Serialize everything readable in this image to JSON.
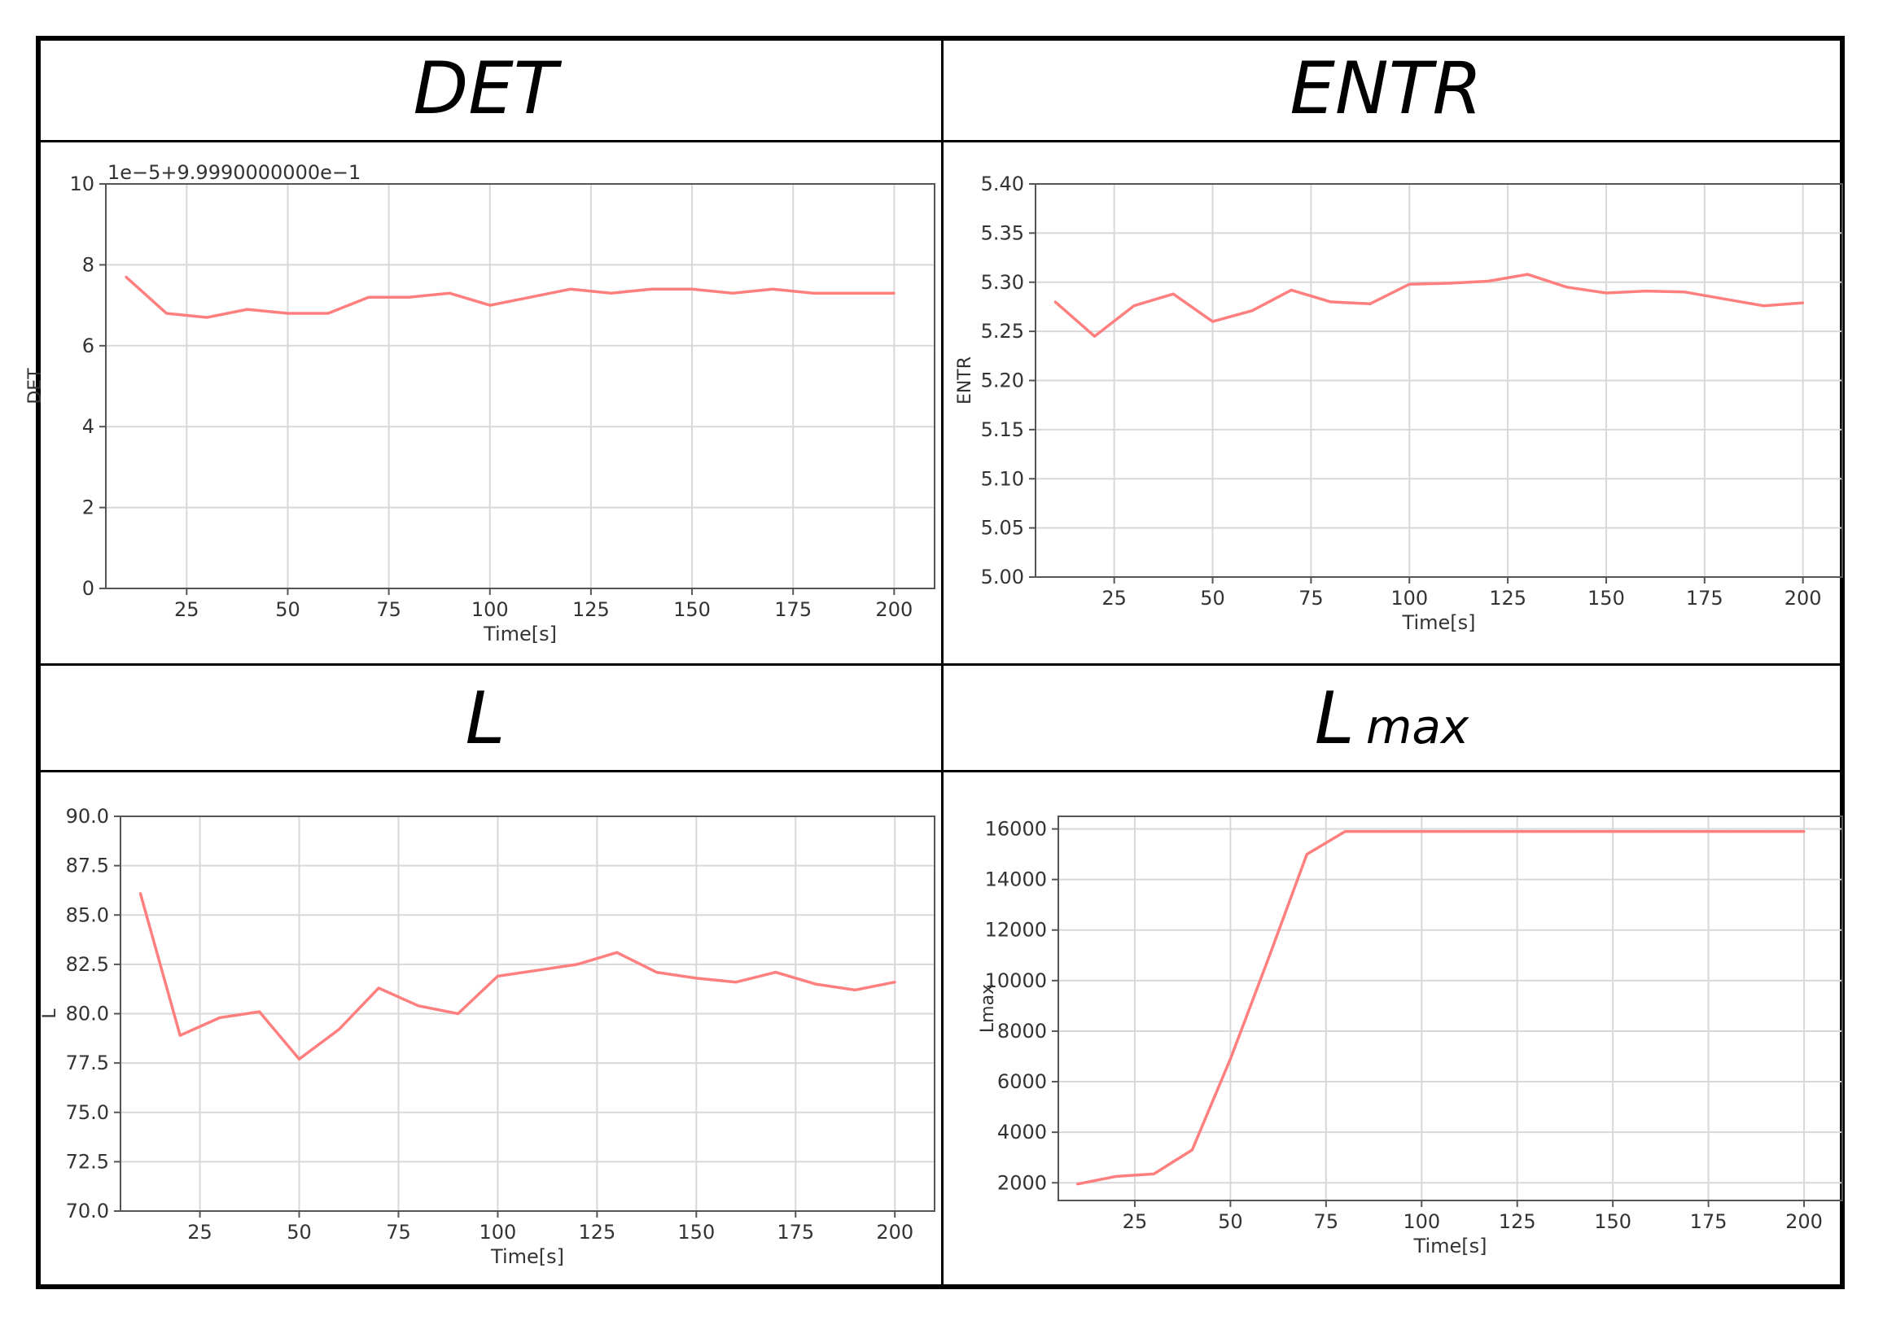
{
  "panels": [
    {
      "title": "DET",
      "subtitle": ""
    },
    {
      "title": "ENTR",
      "subtitle": ""
    },
    {
      "title": "L",
      "subtitle": ""
    },
    {
      "title": "L",
      "subtitle": "max"
    }
  ],
  "chart_data": [
    {
      "type": "line",
      "ylabel": "DET",
      "xlabel": "Time[s]",
      "offset_label": "1e−5+9.9990000000e−1",
      "xlim": [
        5,
        210
      ],
      "ylim": [
        0,
        10
      ],
      "xticks": [
        25,
        50,
        75,
        100,
        125,
        150,
        175,
        200
      ],
      "yticks": [
        0,
        2,
        4,
        6,
        8,
        10
      ],
      "ytick_labels": [
        "0",
        "2",
        "4",
        "6",
        "8",
        "10"
      ],
      "grid": true,
      "color": "#ff7f7f",
      "x": [
        10,
        20,
        30,
        40,
        50,
        60,
        70,
        80,
        90,
        100,
        110,
        120,
        130,
        140,
        150,
        160,
        170,
        180,
        190,
        200
      ],
      "y": [
        7.7,
        6.8,
        6.7,
        6.9,
        6.8,
        6.8,
        7.2,
        7.2,
        7.3,
        7.0,
        7.2,
        7.4,
        7.3,
        7.4,
        7.4,
        7.3,
        7.4,
        7.3,
        7.3,
        7.3
      ]
    },
    {
      "type": "line",
      "ylabel": "ENTR",
      "xlabel": "Time[s]",
      "xlim": [
        5,
        210
      ],
      "ylim": [
        5.0,
        5.4
      ],
      "xticks": [
        25,
        50,
        75,
        100,
        125,
        150,
        175,
        200
      ],
      "yticks": [
        5.0,
        5.05,
        5.1,
        5.15,
        5.2,
        5.25,
        5.3,
        5.35,
        5.4
      ],
      "ytick_labels": [
        "5.00",
        "5.05",
        "5.10",
        "5.15",
        "5.20",
        "5.25",
        "5.30",
        "5.35",
        "5.40"
      ],
      "grid": true,
      "color": "#ff7f7f",
      "x": [
        10,
        20,
        30,
        40,
        50,
        60,
        70,
        80,
        90,
        100,
        110,
        120,
        130,
        140,
        150,
        160,
        170,
        180,
        190,
        200
      ],
      "y": [
        5.28,
        5.245,
        5.276,
        5.288,
        5.26,
        5.271,
        5.292,
        5.28,
        5.278,
        5.298,
        5.299,
        5.301,
        5.308,
        5.295,
        5.289,
        5.291,
        5.29,
        5.283,
        5.276,
        5.279
      ]
    },
    {
      "type": "line",
      "ylabel": "L",
      "xlabel": "Time[s]",
      "xlim": [
        5,
        210
      ],
      "ylim": [
        70.0,
        90.0
      ],
      "xticks": [
        25,
        50,
        75,
        100,
        125,
        150,
        175,
        200
      ],
      "yticks": [
        70.0,
        72.5,
        75.0,
        77.5,
        80.0,
        82.5,
        85.0,
        87.5,
        90.0
      ],
      "ytick_labels": [
        "70.0",
        "72.5",
        "75.0",
        "77.5",
        "80.0",
        "82.5",
        "85.0",
        "87.5",
        "90.0"
      ],
      "grid": true,
      "color": "#ff7f7f",
      "x": [
        10,
        20,
        30,
        40,
        50,
        60,
        70,
        80,
        90,
        100,
        110,
        120,
        130,
        140,
        150,
        160,
        170,
        180,
        190,
        200
      ],
      "y": [
        86.1,
        78.9,
        79.8,
        80.1,
        77.7,
        79.2,
        81.3,
        80.4,
        80.0,
        81.9,
        82.2,
        82.5,
        83.1,
        82.1,
        81.8,
        81.6,
        82.1,
        81.5,
        81.2,
        81.6
      ]
    },
    {
      "type": "line",
      "ylabel": "Lmax",
      "xlabel": "Time[s]",
      "xlim": [
        5,
        210
      ],
      "ylim": [
        1300,
        16500
      ],
      "xticks": [
        25,
        50,
        75,
        100,
        125,
        150,
        175,
        200
      ],
      "yticks": [
        2000,
        4000,
        6000,
        8000,
        10000,
        12000,
        14000,
        16000
      ],
      "ytick_labels": [
        "2000",
        "4000",
        "6000",
        "8000",
        "10000",
        "12000",
        "14000",
        "16000"
      ],
      "grid": true,
      "color": "#ff7f7f",
      "x": [
        10,
        20,
        30,
        40,
        50,
        60,
        70,
        80,
        90,
        100,
        110,
        120,
        130,
        140,
        150,
        160,
        170,
        180,
        190,
        200
      ],
      "y": [
        1950,
        2250,
        2350,
        3300,
        6900,
        10900,
        15000,
        15900,
        15900,
        15900,
        15900,
        15900,
        15900,
        15900,
        15900,
        15900,
        15900,
        15900,
        15900,
        15900
      ]
    }
  ]
}
